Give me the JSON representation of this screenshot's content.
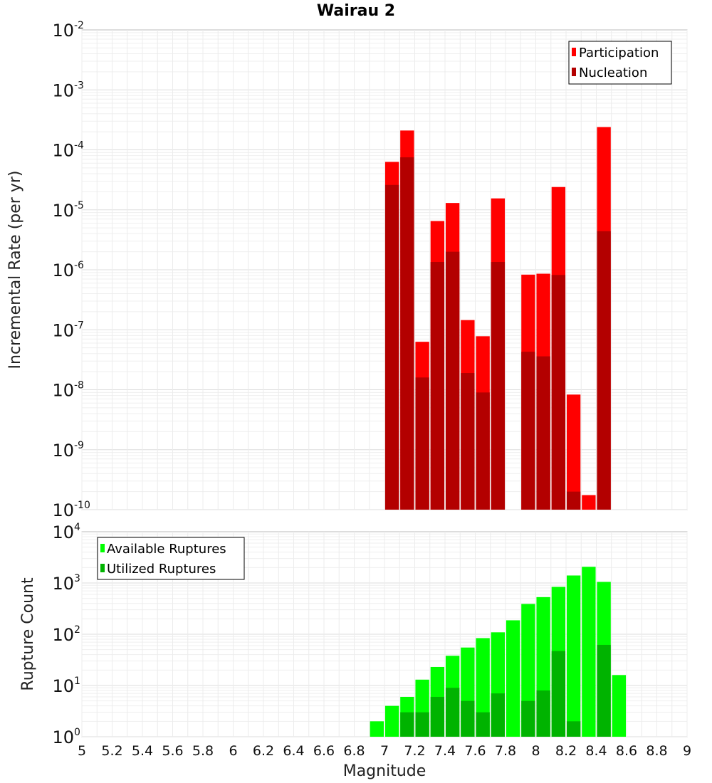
{
  "chart_data": [
    {
      "type": "bar",
      "title": "Wairau 2",
      "xlabel": "Magnitude",
      "ylabel": "Incremental Rate (per yr)",
      "y_scale": "log",
      "ylim_exponents": [
        -10,
        -2
      ],
      "xlim": [
        5,
        9
      ],
      "grid": true,
      "legend_placement": "top-right",
      "series": [
        {
          "name": "Participation",
          "color": "#ff0000",
          "points": [
            {
              "x": 7.05,
              "y": 6.3e-05
            },
            {
              "x": 7.15,
              "y": 0.00021
            },
            {
              "x": 7.25,
              "y": 6.3e-08
            },
            {
              "x": 7.35,
              "y": 6.5e-06
            },
            {
              "x": 7.45,
              "y": 1.3e-05
            },
            {
              "x": 7.55,
              "y": 1.45e-07
            },
            {
              "x": 7.65,
              "y": 7.8e-08
            },
            {
              "x": 7.75,
              "y": 1.55e-05
            },
            {
              "x": 7.95,
              "y": 8.3e-07
            },
            {
              "x": 8.05,
              "y": 8.6e-07
            },
            {
              "x": 8.15,
              "y": 2.4e-05
            },
            {
              "x": 8.25,
              "y": 8.3e-09
            },
            {
              "x": 8.35,
              "y": 1.75e-10
            },
            {
              "x": 8.45,
              "y": 0.00024
            }
          ]
        },
        {
          "name": "Nucleation",
          "color": "#b30000",
          "points": [
            {
              "x": 7.05,
              "y": 2.6e-05
            },
            {
              "x": 7.15,
              "y": 7.5e-05
            },
            {
              "x": 7.25,
              "y": 1.6e-08
            },
            {
              "x": 7.35,
              "y": 1.35e-06
            },
            {
              "x": 7.45,
              "y": 2e-06
            },
            {
              "x": 7.55,
              "y": 1.9e-08
            },
            {
              "x": 7.65,
              "y": 9e-09
            },
            {
              "x": 7.75,
              "y": 1.35e-06
            },
            {
              "x": 7.95,
              "y": 4.3e-08
            },
            {
              "x": 8.05,
              "y": 3.6e-08
            },
            {
              "x": 8.15,
              "y": 8.2e-07
            },
            {
              "x": 8.25,
              "y": 2e-10
            },
            {
              "x": 8.45,
              "y": 4.4e-06
            }
          ]
        }
      ]
    },
    {
      "type": "bar",
      "title": "",
      "xlabel": "Magnitude",
      "ylabel": "Rupture Count",
      "y_scale": "log",
      "ylim_exponents": [
        0,
        4
      ],
      "xlim": [
        5,
        9
      ],
      "x_ticks": [
        "5",
        "5.2",
        "5.4",
        "5.6",
        "5.8",
        "6",
        "6.2",
        "6.4",
        "6.6",
        "6.8",
        "7",
        "7.2",
        "7.4",
        "7.6",
        "7.8",
        "8",
        "8.2",
        "8.4",
        "8.6",
        "8.8",
        "9"
      ],
      "grid": true,
      "legend_placement": "top-left",
      "series": [
        {
          "name": "Available Ruptures",
          "color": "#00ff00",
          "points": [
            {
              "x": 6.65,
              "y": 1
            },
            {
              "x": 6.85,
              "y": 1
            },
            {
              "x": 6.95,
              "y": 2
            },
            {
              "x": 7.05,
              "y": 4
            },
            {
              "x": 7.15,
              "y": 6
            },
            {
              "x": 7.25,
              "y": 13
            },
            {
              "x": 7.35,
              "y": 23
            },
            {
              "x": 7.45,
              "y": 38
            },
            {
              "x": 7.55,
              "y": 55
            },
            {
              "x": 7.65,
              "y": 84
            },
            {
              "x": 7.75,
              "y": 109
            },
            {
              "x": 7.85,
              "y": 187
            },
            {
              "x": 7.95,
              "y": 390
            },
            {
              "x": 8.05,
              "y": 530
            },
            {
              "x": 8.15,
              "y": 840
            },
            {
              "x": 8.25,
              "y": 1400
            },
            {
              "x": 8.35,
              "y": 2070
            },
            {
              "x": 8.45,
              "y": 1050
            },
            {
              "x": 8.55,
              "y": 16
            }
          ]
        },
        {
          "name": "Utilized Ruptures",
          "color": "#00b300",
          "points": [
            {
              "x": 7.05,
              "y": 1
            },
            {
              "x": 7.15,
              "y": 3
            },
            {
              "x": 7.25,
              "y": 3
            },
            {
              "x": 7.35,
              "y": 6
            },
            {
              "x": 7.45,
              "y": 9
            },
            {
              "x": 7.55,
              "y": 5
            },
            {
              "x": 7.65,
              "y": 3
            },
            {
              "x": 7.75,
              "y": 7
            },
            {
              "x": 7.95,
              "y": 5
            },
            {
              "x": 8.05,
              "y": 8
            },
            {
              "x": 8.15,
              "y": 47
            },
            {
              "x": 8.25,
              "y": 2
            },
            {
              "x": 8.35,
              "y": 1
            },
            {
              "x": 8.45,
              "y": 62
            }
          ]
        }
      ]
    }
  ]
}
